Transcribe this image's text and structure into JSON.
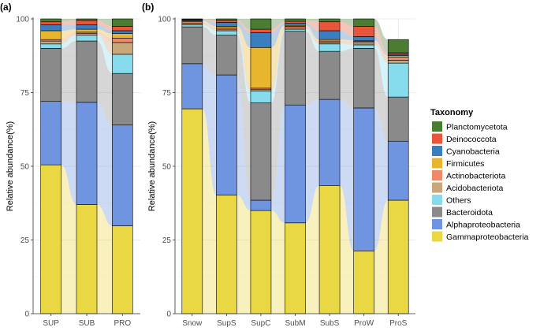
{
  "colors": {
    "Planctomycetota": "#4a7d32",
    "Deinococcota": "#e8553a",
    "Cyanobacteria": "#3b7ec0",
    "Firmicutes": "#e8b52e",
    "Actinobacteriota": "#ee8a68",
    "Acidobacteriota": "#c9a77a",
    "Others": "#86dcec",
    "Bacteroidota": "#8a8a8a",
    "Alphaproteobacteria": "#6f95e0",
    "Gammaproteobacteria": "#ead744"
  },
  "legend": {
    "title": "Taxonomy",
    "entries": [
      "Planctomycetota",
      "Deinococcota",
      "Cyanobacteria",
      "Firmicutes",
      "Actinobacteriota",
      "Acidobacteriota",
      "Others",
      "Bacteroidota",
      "Alphaproteobacteria",
      "Gammaproteobacteria"
    ]
  },
  "chart_data": [
    {
      "panel_label": "(a)",
      "type": "bar",
      "stacked": true,
      "title": "",
      "xlabel": "",
      "ylabel": "Relative abundance(%)",
      "ylim": [
        0,
        100
      ],
      "yticks": [
        0,
        25,
        50,
        75,
        100
      ],
      "categories": [
        "SUP",
        "SUB",
        "PRO"
      ],
      "stack_order": [
        "Gammaproteobacteria",
        "Alphaproteobacteria",
        "Bacteroidota",
        "Others",
        "Acidobacteriota",
        "Actinobacteriota",
        "Firmicutes",
        "Cyanobacteria",
        "Deinococcota",
        "Planctomycetota"
      ],
      "series": [
        {
          "name": "Gammaproteobacteria",
          "values": [
            50.5,
            37.0,
            29.8
          ]
        },
        {
          "name": "Alphaproteobacteria",
          "values": [
            21.5,
            34.7,
            34.2
          ]
        },
        {
          "name": "Bacteroidota",
          "values": [
            18.0,
            20.8,
            17.5
          ]
        },
        {
          "name": "Others",
          "values": [
            1.5,
            2.0,
            6.5
          ]
        },
        {
          "name": "Acidobacteriota",
          "values": [
            1.0,
            0.5,
            4.0
          ]
        },
        {
          "name": "Actinobacteriota",
          "values": [
            0.5,
            0.5,
            1.5
          ]
        },
        {
          "name": "Firmicutes",
          "values": [
            3.0,
            1.0,
            1.5
          ]
        },
        {
          "name": "Cyanobacteria",
          "values": [
            2.0,
            1.5,
            1.0
          ]
        },
        {
          "name": "Deinococcota",
          "values": [
            1.0,
            1.5,
            1.5
          ]
        },
        {
          "name": "Planctomycetota",
          "values": [
            1.0,
            0.5,
            2.5
          ]
        }
      ]
    },
    {
      "panel_label": "(b)",
      "type": "bar",
      "stacked": true,
      "title": "",
      "xlabel": "",
      "ylabel": "Relative abundance(%)",
      "ylim": [
        0,
        100
      ],
      "yticks": [
        0,
        25,
        50,
        75,
        100
      ],
      "categories": [
        "Snow",
        "SupS",
        "SupC",
        "SubM",
        "SubS",
        "ProW",
        "ProS"
      ],
      "stack_order": [
        "Gammaproteobacteria",
        "Alphaproteobacteria",
        "Bacteroidota",
        "Others",
        "Acidobacteriota",
        "Actinobacteriota",
        "Firmicutes",
        "Cyanobacteria",
        "Deinococcota",
        "Planctomycetota"
      ],
      "series": [
        {
          "name": "Gammaproteobacteria",
          "values": [
            69.5,
            40.2,
            35.0,
            30.8,
            43.5,
            21.3,
            38.5
          ]
        },
        {
          "name": "Alphaproteobacteria",
          "values": [
            15.3,
            40.8,
            3.5,
            40.0,
            29.2,
            48.5,
            20.0
          ]
        },
        {
          "name": "Bacteroidota",
          "values": [
            12.5,
            13.5,
            33.0,
            25.0,
            16.3,
            20.2,
            15.0
          ]
        },
        {
          "name": "Others",
          "values": [
            0.7,
            1.5,
            4.0,
            0.7,
            2.5,
            1.2,
            11.5
          ]
        },
        {
          "name": "Acidobacteriota",
          "values": [
            0.5,
            0.5,
            0.5,
            0.5,
            0.5,
            0.7,
            1.0
          ]
        },
        {
          "name": "Actinobacteriota",
          "values": [
            0.5,
            0.5,
            0.5,
            0.5,
            0.5,
            0.5,
            1.0
          ]
        },
        {
          "name": "Firmicutes",
          "values": [
            0.3,
            0.5,
            13.8,
            0.3,
            0.5,
            0.3,
            0.5
          ]
        },
        {
          "name": "Cyanobacteria",
          "values": [
            0.2,
            1.3,
            5.0,
            0.7,
            3.0,
            1.3,
            0.5
          ]
        },
        {
          "name": "Deinococcota",
          "values": [
            0.3,
            0.7,
            1.2,
            0.7,
            3.0,
            3.5,
            0.5
          ]
        },
        {
          "name": "Planctomycetota",
          "values": [
            0.2,
            0.5,
            3.5,
            0.8,
            1.0,
            2.5,
            4.5
          ]
        }
      ]
    }
  ]
}
